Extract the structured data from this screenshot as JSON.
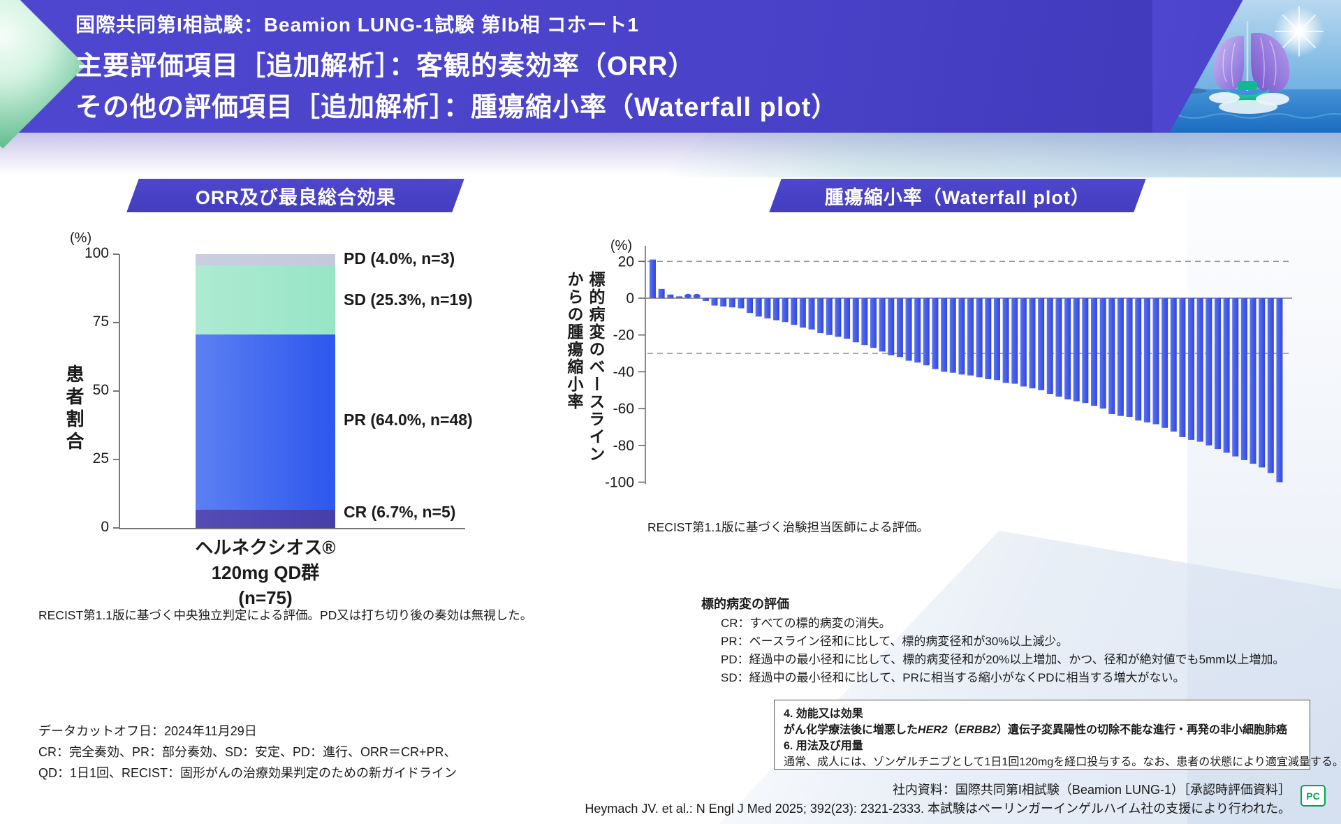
{
  "header": {
    "line1": "国際共同第I相試験：Beamion LUNG-1試験 第Ib相 コホート1",
    "line2": "主要評価項目［追加解析］：客観的奏効率（ORR）",
    "line3": "その他の評価項目［追加解析］：腫瘍縮小率（Waterfall plot）"
  },
  "orr_panel": {
    "banner": "ORR及び最良総合効果",
    "y_axis_unit": "(%)",
    "y_axis_label": "患者割合",
    "x_label_line1": "ヘルネクシオス®",
    "x_label_line2": "120mg QD群",
    "x_label_line3": "(n=75)",
    "note": "RECIST第1.1版に基づく中央独立判定による評価。PD又は打ち切り後の奏効は無視した。"
  },
  "waterfall_panel": {
    "banner": "腫瘍縮小率（Waterfall plot）",
    "y_axis_unit": "(%)",
    "y_axis_label_line1": "標的病変のベースライン",
    "y_axis_label_line2": "からの腫瘍縮小率",
    "note": "RECIST第1.1版に基づく治験担当医師による評価。"
  },
  "chart_data": [
    {
      "type": "bar",
      "subtype": "stacked-single-column",
      "title": "ORR及び最良総合効果",
      "categories": [
        "ヘルネクシオス® 120mg QD群 (n=75)"
      ],
      "series": [
        {
          "name": "CR",
          "label": "CR (6.7%, n=5)",
          "value": 6.7,
          "color": "#554cb6",
          "color2": "#473fa8"
        },
        {
          "name": "PR",
          "label": "PR (64.0%, n=48)",
          "value": 64.0,
          "color": "#5c80f2",
          "color2": "#2d57ee"
        },
        {
          "name": "SD",
          "label": "SD (25.3%, n=19)",
          "value": 25.3,
          "color": "#aeead3",
          "color2": "#97e5c6"
        },
        {
          "name": "PD",
          "label": "PD (4.0%, n=3)",
          "value": 4.0,
          "color": "#c9cfe1",
          "color2": "#c4cada"
        }
      ],
      "ylabel": "患者割合",
      "xlabel": "",
      "ylim": [
        0,
        100
      ],
      "yticks": [
        0,
        25,
        50,
        75,
        100
      ],
      "grid": false,
      "legend_position": "right-of-bar"
    },
    {
      "type": "bar",
      "subtype": "waterfall",
      "title": "腫瘍縮小率（Waterfall plot）",
      "ylabel": "標的病変のベースラインからの腫瘍縮小率",
      "xlabel": "",
      "ylim": [
        -105,
        25
      ],
      "yticks": [
        20,
        0,
        -20,
        -40,
        -60,
        -80,
        -100
      ],
      "reference_lines": [
        20,
        -30
      ],
      "grid": false,
      "bar_color": "#3d56e6",
      "values": [
        21,
        5,
        2,
        1,
        0.5,
        0.5,
        -1.5,
        -4,
        -4.5,
        -5,
        -5.5,
        -8,
        -10,
        -11,
        -12,
        -13,
        -14.5,
        -16,
        -17,
        -19,
        -20,
        -21,
        -22,
        -24,
        -25.5,
        -27,
        -29,
        -31,
        -32,
        -34,
        -35,
        -36.5,
        -38.5,
        -40,
        -40.5,
        -41.5,
        -42,
        -43,
        -44,
        -44.5,
        -46,
        -46.5,
        -48,
        -49,
        -50,
        -52,
        -53.5,
        -55,
        -56,
        -57,
        -58.5,
        -60,
        -63,
        -64,
        -64.5,
        -66.5,
        -67.5,
        -68.5,
        -70.5,
        -72.5,
        -75.5,
        -77,
        -78,
        -80,
        -82,
        -84,
        -86,
        -88,
        -90,
        -92,
        -95,
        -100
      ]
    }
  ],
  "lesion_eval": {
    "title": "標的病変の評価",
    "items": [
      "CR：すべての標的病変の消失。",
      "PR：ベースライン径和に比して、標的病変径和が30%以上減少。",
      "PD：経過中の最小径和に比して、標的病変径和が20%以上増加、かつ、径和が絶対値でも5mm以上増加。",
      "SD：経過中の最小径和に比して、PRに相当する縮小がなくPDに相当する増大がない。"
    ]
  },
  "abbreviations": {
    "line1": "データカットオフ日：2024年11月29日",
    "line2": "CR：完全奏効、PR：部分奏効、SD：安定、PD：進行、ORR＝CR+PR、",
    "line3": "QD：1日1回、RECIST：固形がんの治療効果判定のための新ガイドライン"
  },
  "indication_box": {
    "heading1": "4. 効能又は効果",
    "body1_pre": "がん化学療法後に増悪した",
    "body1_gene1": "HER2",
    "body1_open": "（",
    "body1_gene2": "ERBB2",
    "body1_post": "）遺伝子変異陽性の切除不能な進行・再発の非小細胞肺癌",
    "heading2": "6. 用法及び用量",
    "body2": "通常、成人には、ゾンゲルチニブとして1日1回120mgを経口投与する。なお、患者の状態により適宜減量する。"
  },
  "footer": {
    "ref1": "社内資料：国際共同第I相試験（Beamion LUNG-1）［承認時評価資料］",
    "ref2": "Heymach JV. et al.: N Engl J Med 2025; 392(23): 2321-2333. 本試験はベーリンガーインゲルハイム社の支援により行われた。",
    "pc_badge": "PC"
  },
  "colors": {
    "header_purple": "#4a42c8",
    "banner_purple": "#4b42c6",
    "waterfall_bar_blue": "#3d56e6",
    "pc_badge_green": "#00a651",
    "accent_mint": "#5fbd8e"
  }
}
